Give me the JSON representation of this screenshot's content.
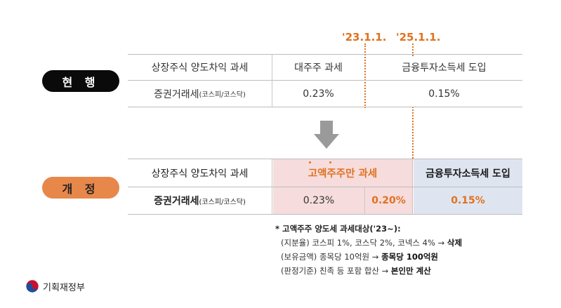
{
  "dates": {
    "d1": "'23.1.1.",
    "d2": "'25.1.1."
  },
  "current": {
    "badge": "현 행",
    "row1": {
      "label": "상장주식 양도차익 과세",
      "c1": "대주주 과세",
      "c2": "금융투자소득세 도입"
    },
    "row2": {
      "label_main": "증권거래세",
      "label_sub": "(코스피/코스닥)",
      "c1": "0.23%",
      "c2": "0.15%"
    }
  },
  "revised": {
    "badge": "개 정",
    "row1": {
      "label": "상장주식 양도차익 과세",
      "c1": "고액주주만 과세",
      "c2": "금융투자소득세 도입"
    },
    "row2": {
      "label_main": "증권거래세",
      "label_sub": "(코스피/코스닥)",
      "c1a": "0.23%",
      "c1b": "0.20%",
      "c2": "0.15%"
    }
  },
  "notes": {
    "title": "* 고액주주 양도세 과세대상('23~):",
    "l1_pre": "(지분율) 코스피 1%, 코스닥 2%, 코넥스 4% → ",
    "l1_bold": "삭제",
    "l2_pre": "(보유금액) 종목당 10억원 → ",
    "l2_bold": "종목당 100억원",
    "l3_pre": "(판정기준) 친족 등 포함 합산 → ",
    "l3_bold": "본인만 계산"
  },
  "logo": {
    "text": "기획재정부"
  },
  "colors": {
    "accent": "#e0711f",
    "pink": "#f6dcdc",
    "blue": "#dfe5f0",
    "dark": "#0a0a0a"
  }
}
